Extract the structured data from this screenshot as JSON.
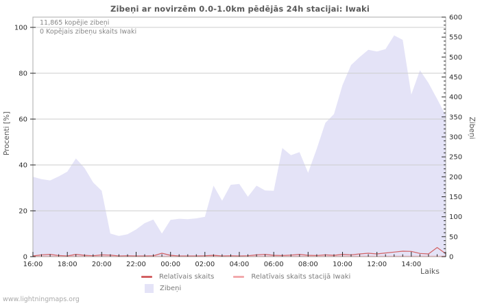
{
  "title": "Zibeņi ar novirzēm 0.0-1.0km pēdējās 24h stacijai: Iwaki",
  "watermark": "www.lightningmaps.org",
  "annotations": {
    "total": "11,865 kopējie zibeņi",
    "station": "0 Kopējais zibeņu skaits Iwaki"
  },
  "axes": {
    "left_label": "Procenti  [%]",
    "right_label": "Zibeņi",
    "x_label": "Laiks",
    "left_ticks": [
      0,
      20,
      40,
      60,
      80,
      100
    ],
    "right_ticks": [
      0,
      50,
      100,
      150,
      200,
      250,
      300,
      350,
      400,
      450,
      500,
      550,
      600
    ],
    "x_tick_labels": [
      "16:00",
      "18:00",
      "20:00",
      "22:00",
      "00:00",
      "02:00",
      "04:00",
      "06:00",
      "08:00",
      "10:00",
      "12:00",
      "14:00"
    ]
  },
  "legend": {
    "items": [
      {
        "label": "Relatīvais skaits",
        "color": "#d26062",
        "swatch": "line"
      },
      {
        "label": "Relatīvais skaits stacijā Iwaki",
        "color": "#f2a9ac",
        "swatch": "line"
      },
      {
        "label": "Zibeņi",
        "color": "#e4e3f7",
        "swatch": "area"
      }
    ]
  },
  "colors": {
    "grid": "#cccccc",
    "frame": "#ababab",
    "tick": "#222222",
    "tick_label": "#2b2b2b",
    "area_fill": "#e4e3f7",
    "line_relative": "#d26062",
    "line_station": "#f2a9ac"
  },
  "chart_data": {
    "type": "area",
    "title": "Zibeņi ar novirzēm 0.0-1.0km pēdējās 24h stacijai: Iwaki",
    "xlabel": "Laiks",
    "left_axis": {
      "label": "Procenti [%]",
      "range": [
        0,
        100
      ],
      "ticks": [
        0,
        20,
        40,
        60,
        80,
        100
      ]
    },
    "right_axis": {
      "label": "Zibeņi",
      "range": [
        0,
        600
      ],
      "tick_step": 50,
      "minor_step": 10
    },
    "grid": true,
    "legend_position": "bottom",
    "x": [
      "16:00",
      "16:30",
      "17:00",
      "17:30",
      "18:00",
      "18:30",
      "19:00",
      "19:30",
      "20:00",
      "20:30",
      "21:00",
      "21:30",
      "22:00",
      "22:30",
      "23:00",
      "23:30",
      "00:00",
      "00:30",
      "01:00",
      "01:30",
      "02:00",
      "02:30",
      "03:00",
      "03:30",
      "04:00",
      "04:30",
      "05:00",
      "05:30",
      "06:00",
      "06:30",
      "07:00",
      "07:30",
      "08:00",
      "08:30",
      "09:00",
      "09:30",
      "10:00",
      "10:30",
      "11:00",
      "11:30",
      "12:00",
      "12:30",
      "13:00",
      "13:30",
      "14:00",
      "14:30",
      "15:00",
      "15:30",
      "16:00"
    ],
    "series": [
      {
        "name": "Zibeņi",
        "type": "area",
        "axis": "right",
        "color": "#e4e3f7",
        "values": [
          200,
          194,
          191,
          201,
          213,
          246,
          222,
          186,
          165,
          58,
          52,
          56,
          68,
          84,
          93,
          58,
          92,
          95,
          94,
          96,
          100,
          178,
          140,
          180,
          182,
          150,
          178,
          166,
          165,
          272,
          254,
          262,
          210,
          270,
          335,
          357,
          430,
          480,
          500,
          518,
          514,
          520,
          554,
          543,
          406,
          467,
          435,
          395,
          354
        ]
      },
      {
        "name": "Relatīvais skaits",
        "type": "line",
        "axis": "left",
        "color": "#d26062",
        "values": [
          0.3,
          0.8,
          1.0,
          0.5,
          0.3,
          1.0,
          0.6,
          0.4,
          0.8,
          0.7,
          0.3,
          0.4,
          0.3,
          0.3,
          0.4,
          1.5,
          0.6,
          0.3,
          0.3,
          0.3,
          0.4,
          0.6,
          0.3,
          0.4,
          0.3,
          0.4,
          0.8,
          1.0,
          0.6,
          0.5,
          0.7,
          1.0,
          0.6,
          0.5,
          0.8,
          0.6,
          1.0,
          0.8,
          1.2,
          1.5,
          1.2,
          1.6,
          2.0,
          2.4,
          2.3,
          1.4,
          1.2,
          4.0,
          1.3
        ]
      },
      {
        "name": "Relatīvais skaits stacijā Iwaki",
        "type": "line",
        "axis": "left",
        "color": "#f2a9ac",
        "values": [
          0,
          0,
          0,
          0,
          0,
          0,
          0,
          0,
          0,
          0,
          0,
          0,
          0,
          0,
          0,
          0,
          0,
          0,
          0,
          0,
          0,
          0,
          0,
          0,
          0,
          0,
          0,
          0,
          0,
          0,
          0,
          0,
          0,
          0,
          0,
          0,
          0,
          0,
          0,
          0,
          0,
          0,
          0,
          0,
          0,
          0,
          0,
          0,
          0
        ]
      }
    ],
    "annotations": [
      "11,865 kopējie zibeņi",
      "0 Kopējais zibeņu skaits Iwaki"
    ]
  }
}
